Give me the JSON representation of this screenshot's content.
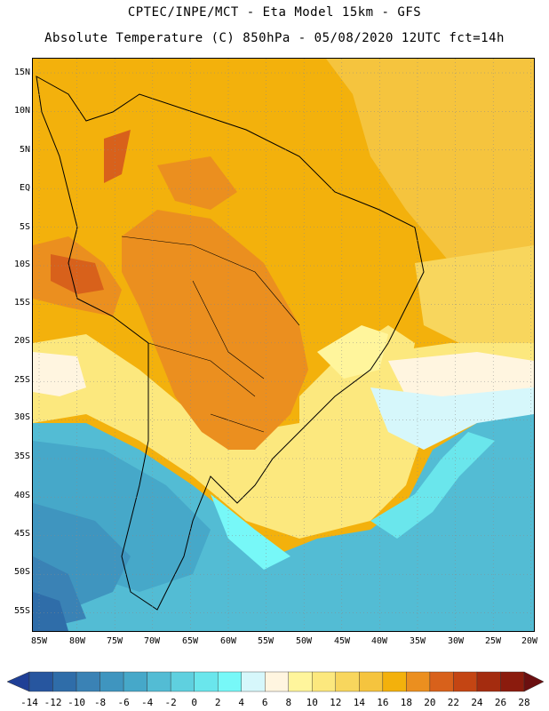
{
  "title": {
    "line1": "CPTEC/INPE/MCT -  Eta Model 15km - GFS",
    "line2": "Absolute Temperature (C) 850hPa - 05/08/2020 12UTC fct=14h"
  },
  "map": {
    "region": "South America",
    "variable": "Absolute Temperature (C)",
    "level": "850hPa",
    "model": "Eta Model 15km - GFS",
    "lat_labels": [
      "15N",
      "10N",
      "5N",
      "EQ",
      "5S",
      "10S",
      "15S",
      "20S",
      "25S",
      "30S",
      "35S",
      "40S",
      "45S",
      "50S",
      "55S"
    ],
    "lon_labels": [
      "85W",
      "80W",
      "75W",
      "70W",
      "65W",
      "60W",
      "55W",
      "50W",
      "45W",
      "40W",
      "35W",
      "30W",
      "25W",
      "20W"
    ]
  },
  "colorbar": {
    "labels": [
      "-14",
      "-12",
      "-10",
      "-8",
      "-6",
      "-4",
      "-2",
      "0",
      "2",
      "4",
      "6",
      "8",
      "10",
      "12",
      "14",
      "16",
      "18",
      "20",
      "22",
      "24",
      "26",
      "28"
    ],
    "colors": [
      "#1f3f96",
      "#27569f",
      "#2f6da9",
      "#3a82b5",
      "#3f95bf",
      "#46a8c9",
      "#53bcd4",
      "#5fd0df",
      "#6ae6ec",
      "#77f8f8",
      "#d6f7fb",
      "#fff5e0",
      "#fff59c",
      "#fce87e",
      "#f8d65d",
      "#f5c43e",
      "#f3b10c",
      "#eb8f1f",
      "#d8611b",
      "#c44513",
      "#a42c0f",
      "#8b1b0d",
      "#6b0f10"
    ]
  }
}
